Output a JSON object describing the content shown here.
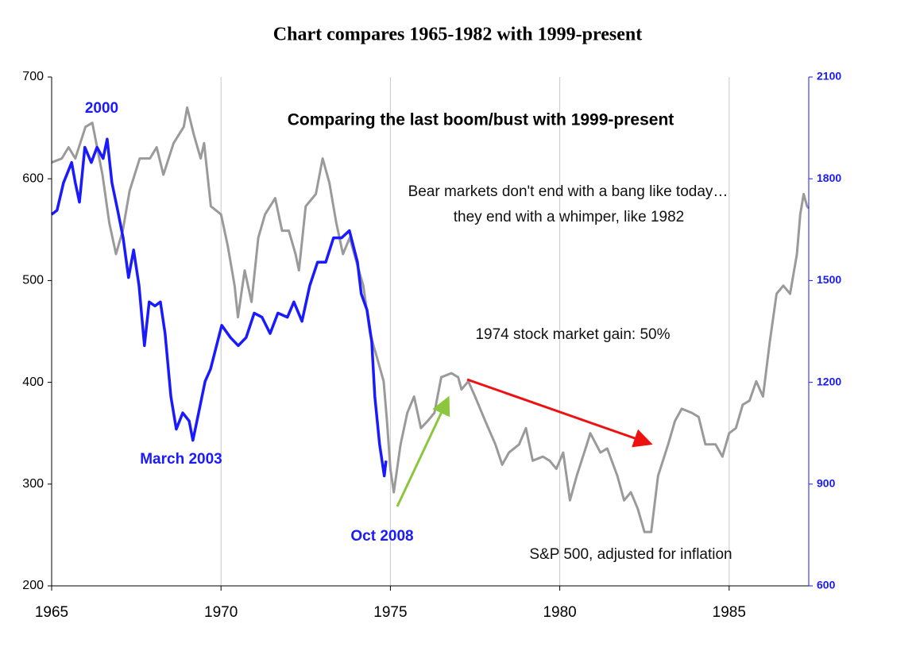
{
  "chart_data": {
    "type": "line",
    "title": "Chart compares 1965-1982 with 1999-present",
    "subtitle": "Comparing the last boom/bust with 1999-present",
    "annotations": [
      "2000",
      "March 2003",
      "Oct 2008",
      "Bear markets don't end with a bang like today…",
      "they end with a whimper, like 1982",
      "1974 stock market gain:  50%"
    ],
    "xlim": [
      1965,
      1987.35
    ],
    "xticks": [
      1965,
      1970,
      1975,
      1980,
      1985
    ],
    "grid_x": true,
    "ylim": [
      200,
      700
    ],
    "yticks": [
      200,
      300,
      400,
      500,
      600,
      700
    ],
    "y2lim": [
      600,
      2100
    ],
    "y2ticks": [
      600,
      900,
      1200,
      1500,
      1800,
      2100
    ],
    "series": [
      {
        "name": "S&P 500, adjusted for inflation",
        "color": "#9a9a9a",
        "x": [
          1965.0,
          1965.3,
          1965.5,
          1965.7,
          1966.0,
          1966.2,
          1966.5,
          1966.7,
          1966.9,
          1967.1,
          1967.3,
          1967.6,
          1967.9,
          1968.1,
          1968.3,
          1968.6,
          1968.9,
          1969.0,
          1969.2,
          1969.4,
          1969.5,
          1969.7,
          1970.0,
          1970.2,
          1970.4,
          1970.5,
          1970.7,
          1970.9,
          1971.1,
          1971.3,
          1971.6,
          1971.8,
          1972.0,
          1972.2,
          1972.3,
          1972.5,
          1972.8,
          1973.0,
          1973.2,
          1973.4,
          1973.6,
          1973.8,
          1974.0,
          1974.2,
          1974.4,
          1974.6,
          1974.8,
          1974.9,
          1975.0,
          1975.1,
          1975.3,
          1975.5,
          1975.7,
          1975.9,
          1976.1,
          1976.3,
          1976.5,
          1976.8,
          1977.0,
          1977.1,
          1977.3,
          1977.5,
          1977.8,
          1978.1,
          1978.3,
          1978.5,
          1978.8,
          1979.0,
          1979.2,
          1979.5,
          1979.7,
          1979.9,
          1980.1,
          1980.3,
          1980.5,
          1980.8,
          1980.9,
          1981.2,
          1981.4,
          1981.7,
          1981.9,
          1982.1,
          1982.3,
          1982.5,
          1982.7,
          1982.9,
          1983.2,
          1983.4,
          1983.6,
          1983.9,
          1984.1,
          1984.3,
          1984.6,
          1984.8,
          1985.0,
          1985.2,
          1985.4,
          1985.6,
          1985.8,
          1986.0,
          1986.2,
          1986.4,
          1986.6,
          1986.8,
          1987.0,
          1987.1,
          1987.2,
          1987.3,
          1987.35
        ],
        "values": [
          616,
          620,
          631,
          620,
          651,
          655,
          604,
          557,
          526,
          549,
          588,
          620,
          620,
          631,
          604,
          635,
          651,
          670,
          643,
          620,
          635,
          573,
          565,
          534,
          495,
          464,
          510,
          479,
          542,
          565,
          581,
          549,
          549,
          526,
          510,
          573,
          585,
          620,
          596,
          557,
          526,
          542,
          518,
          495,
          448,
          425,
          401,
          362,
          315,
          292,
          339,
          370,
          386,
          355,
          362,
          370,
          405,
          409,
          405,
          393,
          401,
          386,
          362,
          339,
          319,
          331,
          339,
          355,
          323,
          327,
          323,
          315,
          331,
          284,
          308,
          339,
          350,
          331,
          335,
          308,
          284,
          292,
          276,
          253,
          253,
          308,
          339,
          362,
          374,
          370,
          366,
          339,
          339,
          327,
          350,
          355,
          378,
          382,
          401,
          386,
          440,
          487,
          495,
          487,
          526,
          565,
          585,
          573,
          571
        ]
      },
      {
        "color": "#1a1aff",
        "axis": "y2",
        "x": [
          1965.0,
          1965.16,
          1965.35,
          1965.59,
          1965.7,
          1965.82,
          1965.98,
          1966.17,
          1966.34,
          1966.52,
          1966.64,
          1966.78,
          1966.95,
          1967.11,
          1967.27,
          1967.42,
          1967.58,
          1967.74,
          1967.88,
          1968.05,
          1968.21,
          1968.35,
          1968.52,
          1968.68,
          1968.87,
          1969.06,
          1969.17,
          1969.29,
          1969.53,
          1969.69,
          1970.02,
          1970.28,
          1970.51,
          1970.74,
          1970.98,
          1971.21,
          1971.45,
          1971.68,
          1971.96,
          1972.15,
          1972.39,
          1972.62,
          1972.85,
          1973.09,
          1973.32,
          1973.56,
          1973.79,
          1974.03,
          1974.14,
          1974.31,
          1974.45,
          1974.54,
          1974.68,
          1974.82,
          1974.87
        ],
        "values": [
          1695,
          1707,
          1788,
          1848,
          1788,
          1731,
          1893,
          1848,
          1893,
          1860,
          1917,
          1788,
          1707,
          1626,
          1509,
          1590,
          1485,
          1308,
          1437,
          1425,
          1437,
          1344,
          1158,
          1062,
          1110,
          1086,
          1029,
          1086,
          1203,
          1239,
          1368,
          1332,
          1308,
          1332,
          1404,
          1392,
          1344,
          1404,
          1392,
          1437,
          1380,
          1485,
          1554,
          1554,
          1626,
          1626,
          1647,
          1554,
          1461,
          1413,
          1320,
          1158,
          1017,
          924,
          969
        ]
      }
    ]
  }
}
